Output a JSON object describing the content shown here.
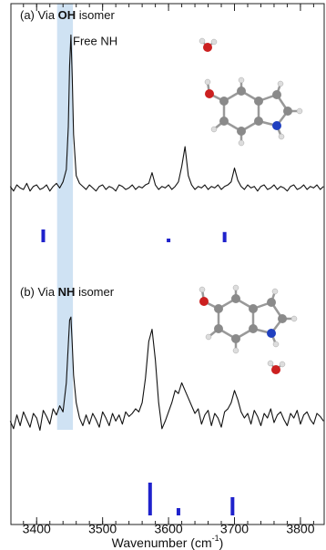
{
  "chart_data": {
    "type": "spectrum",
    "xlim": [
      3361,
      3836
    ],
    "xticks": [
      3400,
      3500,
      3600,
      3700,
      3800
    ],
    "xminorticks": [
      3380,
      3400,
      3420,
      3440,
      3460,
      3480,
      3500,
      3520,
      3540,
      3560,
      3580,
      3600,
      3620,
      3640,
      3660,
      3680,
      3700,
      3720,
      3740,
      3760,
      3780,
      3800,
      3820
    ],
    "x_label": {
      "pre": "Wavenumber (cm",
      "sup": "-1",
      "post": ")"
    },
    "annotation": "Free NH",
    "highlight": {
      "x": [
        3431,
        3455
      ],
      "color": "#cfe2f3"
    },
    "trace_color": "#111111",
    "stick_color": "#1f22cc",
    "stick_ylim": [
      0,
      1
    ],
    "x": [
      3360,
      3365,
      3370,
      3375,
      3380,
      3385,
      3390,
      3395,
      3400,
      3405,
      3410,
      3415,
      3420,
      3425,
      3430,
      3435,
      3440,
      3445,
      3448,
      3450,
      3452,
      3454,
      3456,
      3460,
      3465,
      3470,
      3475,
      3480,
      3485,
      3490,
      3495,
      3500,
      3505,
      3510,
      3515,
      3520,
      3525,
      3530,
      3535,
      3540,
      3545,
      3550,
      3555,
      3560,
      3565,
      3570,
      3575,
      3580,
      3585,
      3590,
      3595,
      3600,
      3605,
      3610,
      3615,
      3620,
      3625,
      3630,
      3635,
      3640,
      3645,
      3650,
      3655,
      3660,
      3665,
      3670,
      3675,
      3680,
      3685,
      3690,
      3695,
      3700,
      3705,
      3710,
      3715,
      3720,
      3725,
      3730,
      3735,
      3740,
      3745,
      3750,
      3755,
      3760,
      3765,
      3770,
      3775,
      3780,
      3785,
      3790,
      3795,
      3800,
      3805,
      3810,
      3815,
      3820,
      3825,
      3830,
      3835
    ],
    "panels": [
      {
        "label": {
          "pre": "(a) Via ",
          "bold": "OH",
          "post": " isomer"
        },
        "ylim": [
          -0.2,
          1.05
        ],
        "values": [
          0.01,
          -0.02,
          0.02,
          0.0,
          -0.01,
          0.03,
          -0.02,
          0.01,
          0.02,
          -0.01,
          0.0,
          0.02,
          -0.02,
          0.01,
          0.03,
          0.0,
          0.04,
          0.12,
          0.4,
          0.8,
          1.0,
          0.72,
          0.35,
          0.08,
          0.03,
          0.01,
          -0.01,
          0.02,
          0.0,
          -0.02,
          0.01,
          0.02,
          -0.01,
          0.01,
          0.0,
          -0.02,
          0.02,
          0.01,
          -0.01,
          0.0,
          0.02,
          -0.01,
          0.01,
          0.0,
          0.02,
          0.03,
          0.1,
          0.02,
          -0.01,
          0.01,
          0.0,
          0.02,
          -0.01,
          0.01,
          0.04,
          0.14,
          0.27,
          0.08,
          0.02,
          -0.01,
          0.01,
          0.0,
          0.02,
          -0.01,
          0.01,
          0.0,
          0.02,
          -0.01,
          0.01,
          0.02,
          0.04,
          0.13,
          0.05,
          0.01,
          -0.01,
          0.02,
          0.0,
          0.01,
          -0.02,
          0.01,
          0.02,
          -0.01,
          0.0,
          0.02,
          -0.01,
          0.01,
          0.0,
          -0.02,
          0.01,
          0.02,
          -0.01,
          0.0,
          0.02,
          -0.01,
          0.01,
          0.0,
          0.02,
          -0.01,
          0.01
        ],
        "sticks_x": [
          3410,
          3600,
          3685
        ],
        "sticks_values": [
          0.35,
          0.1,
          0.28
        ]
      },
      {
        "label": {
          "pre": "(b) Via ",
          "bold": "NH",
          "post": " isomer"
        },
        "ylim": [
          -0.2,
          1.05
        ],
        "values": [
          0.0,
          -0.05,
          0.04,
          -0.03,
          0.06,
          0.01,
          -0.04,
          0.05,
          0.02,
          -0.06,
          0.07,
          0.03,
          -0.02,
          0.08,
          0.04,
          0.1,
          0.06,
          0.25,
          0.5,
          0.66,
          0.68,
          0.5,
          0.3,
          0.12,
          0.02,
          -0.03,
          0.04,
          -0.02,
          0.05,
          0.01,
          -0.04,
          0.06,
          0.02,
          -0.03,
          0.05,
          0.0,
          0.04,
          -0.02,
          0.06,
          0.03,
          0.05,
          0.08,
          0.06,
          0.12,
          0.28,
          0.52,
          0.6,
          0.4,
          0.12,
          -0.05,
          0.0,
          0.06,
          0.12,
          0.2,
          0.18,
          0.25,
          0.2,
          0.15,
          0.1,
          0.05,
          0.08,
          -0.02,
          0.04,
          0.07,
          -0.03,
          0.05,
          0.02,
          -0.04,
          0.06,
          0.08,
          0.12,
          0.2,
          0.14,
          0.06,
          0.02,
          0.05,
          -0.02,
          0.07,
          0.03,
          -0.03,
          0.05,
          0.02,
          0.08,
          -0.01,
          0.04,
          0.06,
          0.01,
          -0.03,
          0.05,
          0.02,
          0.07,
          -0.02,
          0.04,
          0.06,
          0.01,
          -0.02,
          0.05,
          0.03,
          0.0
        ],
        "sticks_x": [
          3572,
          3615,
          3697
        ],
        "sticks_values": [
          0.9,
          0.2,
          0.5
        ]
      }
    ]
  }
}
